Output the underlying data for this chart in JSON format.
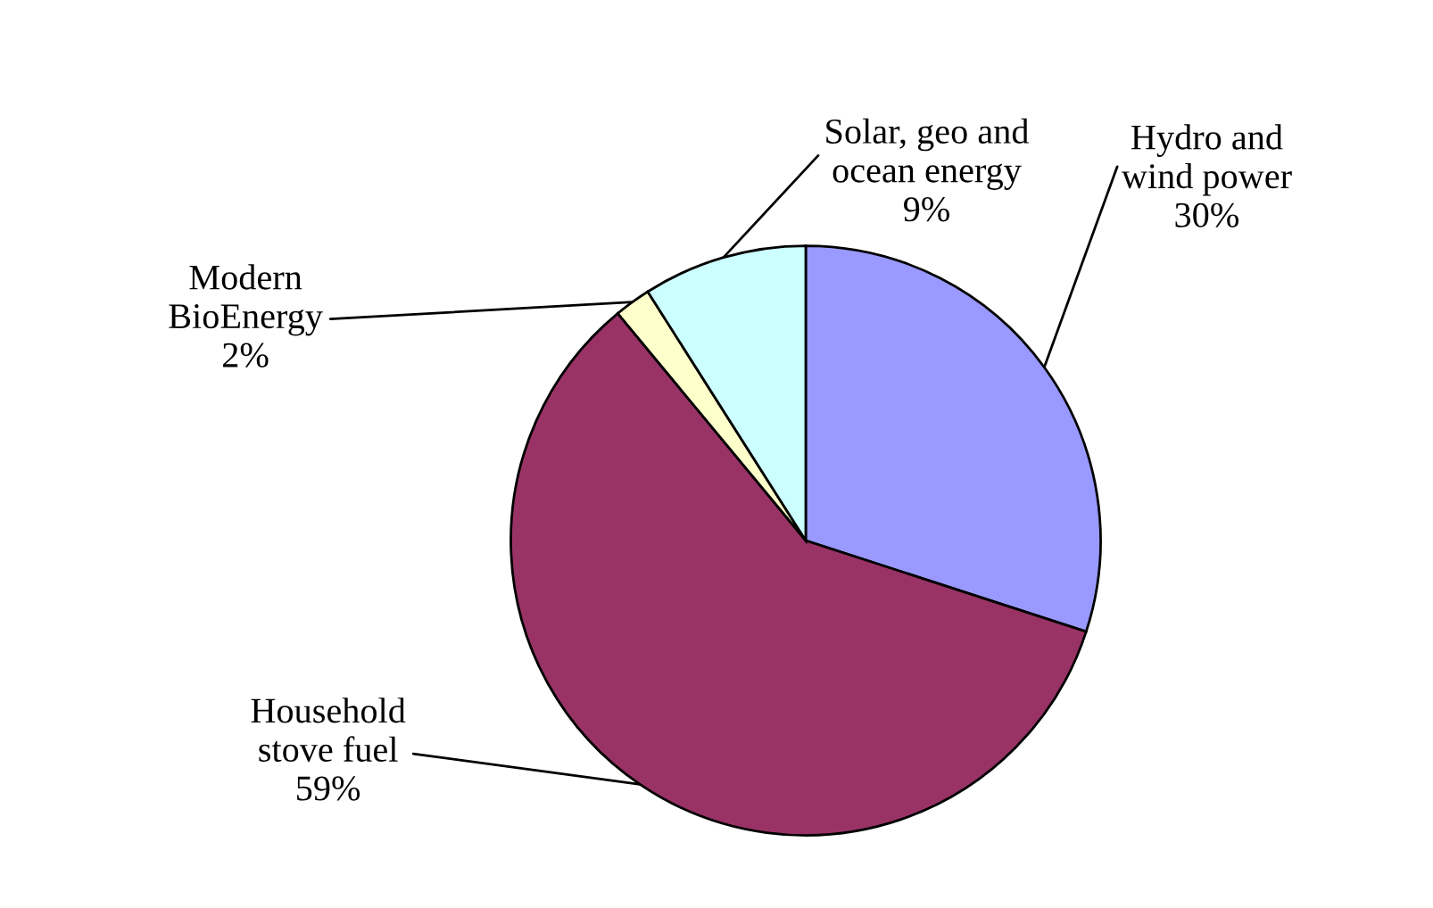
{
  "chart_data": {
    "type": "pie",
    "categories": [
      "Hydro and\nwind power",
      "Household\nstove fuel",
      "Modern\nBioEnergy",
      "Solar, geo and\nocean energy"
    ],
    "values": [
      30,
      59,
      2,
      9
    ],
    "colors": [
      "#9999ff",
      "#993366",
      "#ffffcc",
      "#ccffff"
    ],
    "value_labels": [
      "30%",
      "59%",
      "2%",
      "9%"
    ],
    "legend": false
  }
}
